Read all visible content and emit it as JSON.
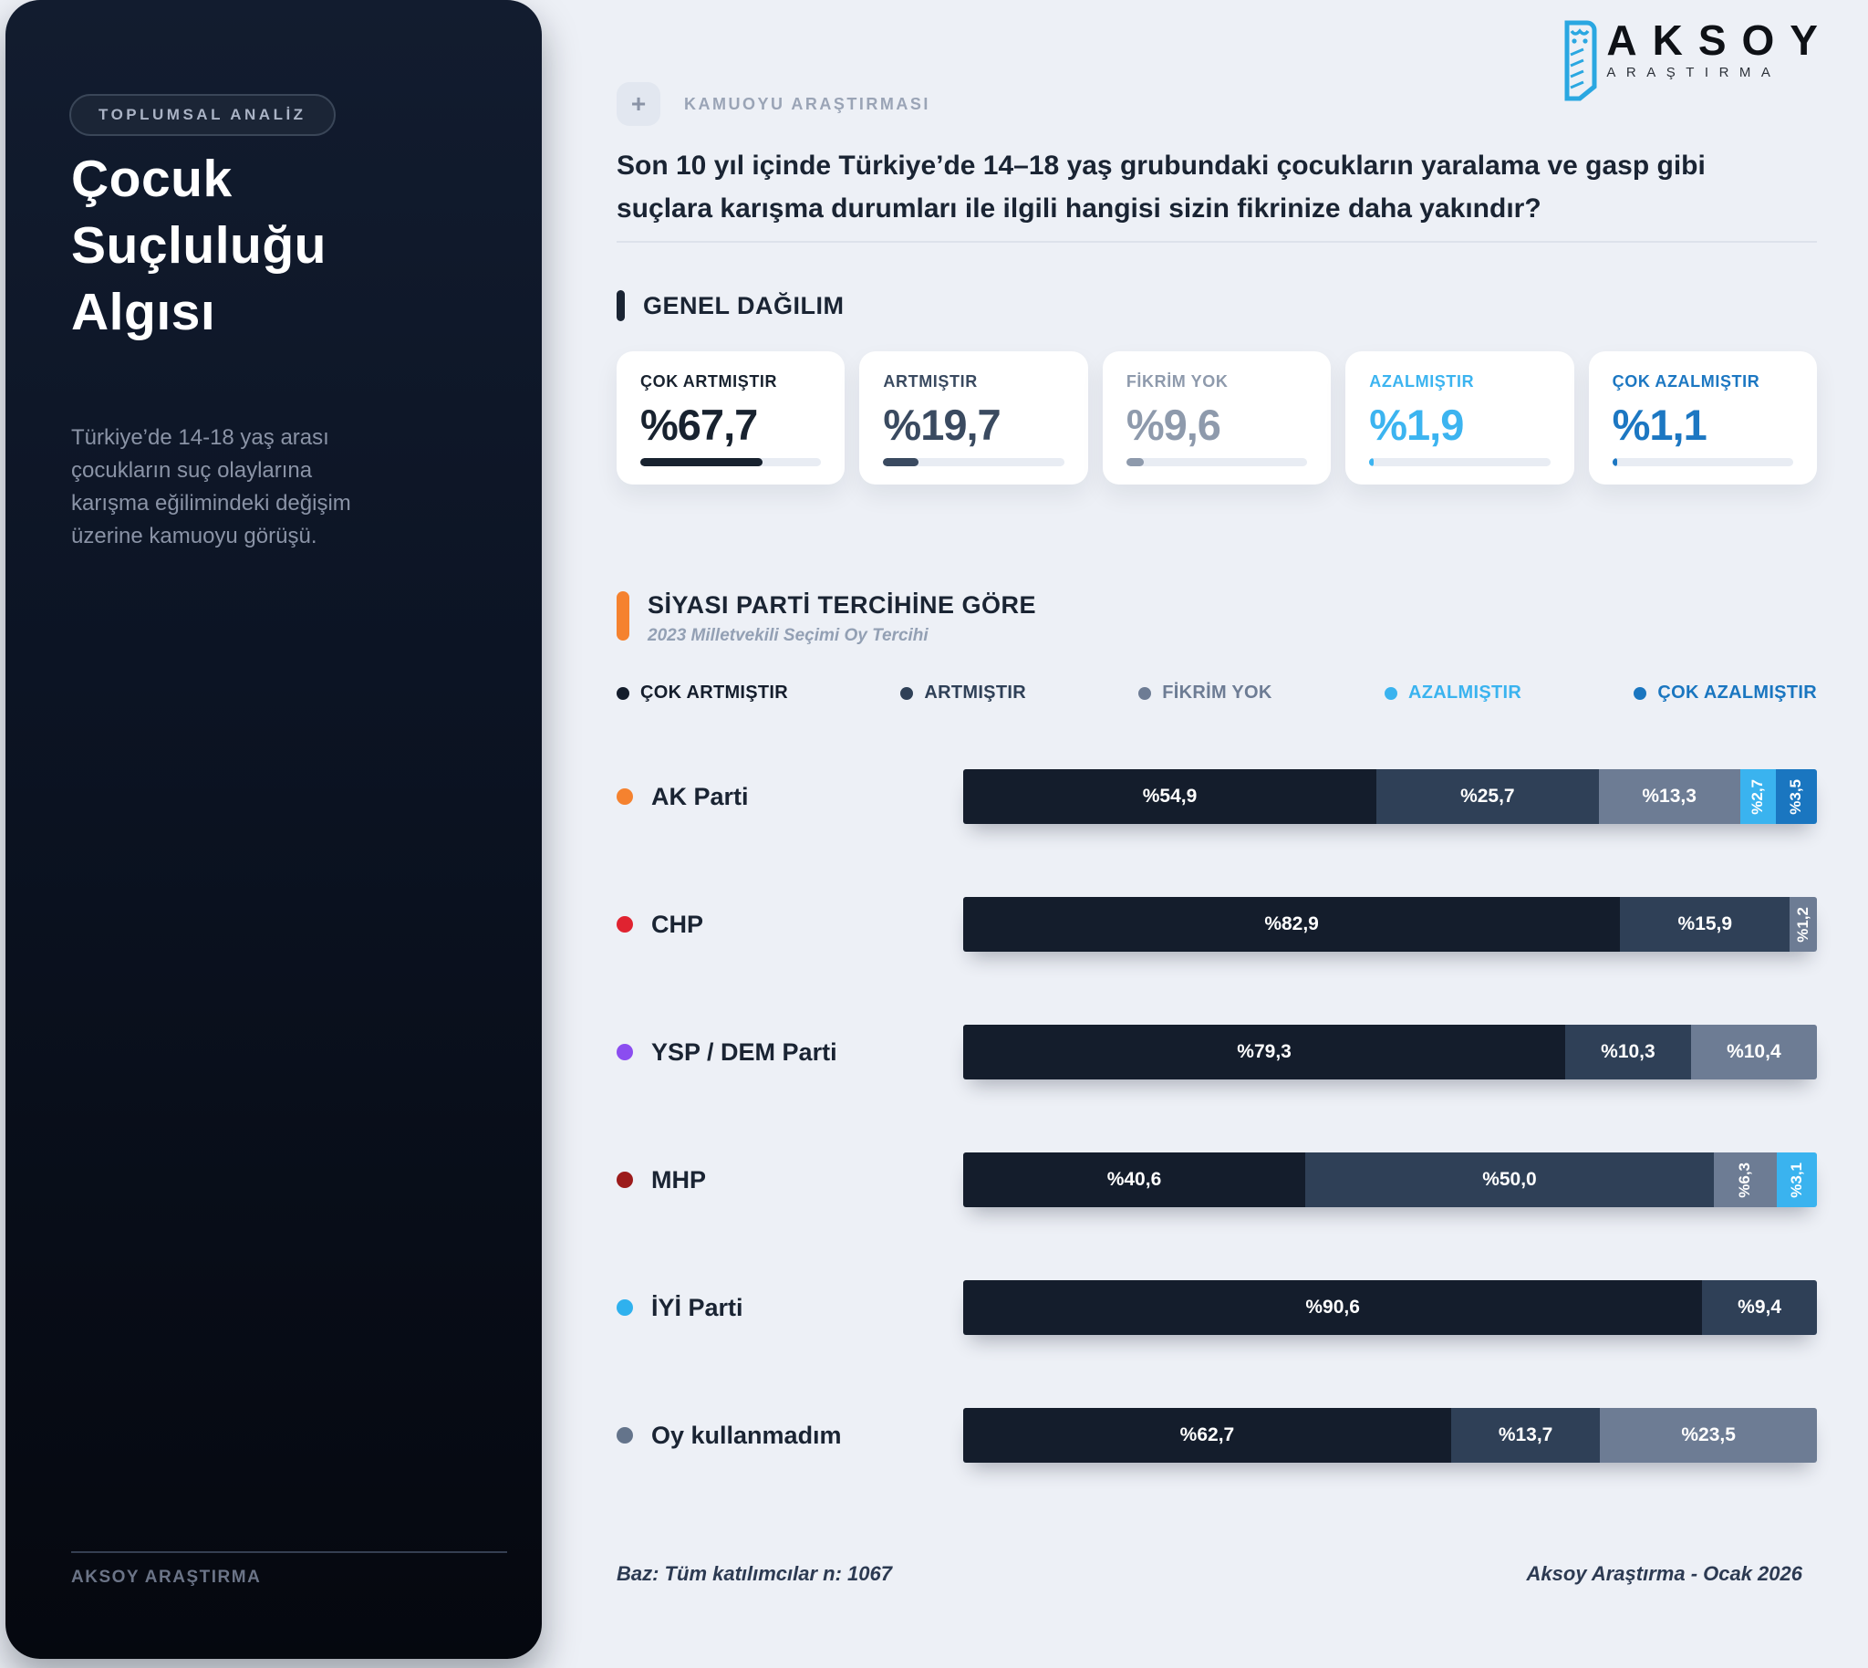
{
  "brand": {
    "name": "AKSOY",
    "subname": "ARAŞTIRMA"
  },
  "sidebar": {
    "badge": "TOPLUMSAL ANALİZ",
    "title_lines": [
      "Çocuk",
      "Suçluluğu",
      "Algısı"
    ],
    "description": "Türkiye’de 14-18 yaş arası çocukların suç olaylarına karışma eğilimindeki değişim üzerine kamuoyu görüşü.",
    "footer_brand": "AKSOY ARAŞTIRMA"
  },
  "header": {
    "plus_icon": "+",
    "eyebrow": "KAMUOYU ARAŞTIRMASI",
    "question": "Son 10 yıl içinde Türkiye’de 14–18 yaş grubundaki çocukların yaralama ve gasp gibi suçlara karışma durumları ile ilgili hangisi sizin fikrinize daha yakındır?"
  },
  "general_section": {
    "title": "GENEL DAĞILIM"
  },
  "party_section": {
    "title": "SİYASI PARTİ TERCİHİNE GÖRE",
    "subtitle": "2023 Milletvekili Seçimi Oy Tercihi",
    "accent_color": "#f5822f"
  },
  "footer": {
    "left": "Baz: Tüm katılımcılar n: 1067",
    "right": "Aksoy Araştırma - Ocak 2026"
  },
  "chart_data": [
    {
      "type": "bar",
      "variant": "stat-cards-with-progress",
      "title": "GENEL DAĞILIM",
      "categories": [
        "ÇOK ARTMIŞTIR",
        "ARTMIŞTIR",
        "FİKRİM YOK",
        "AZALMIŞTIR",
        "ÇOK AZALMIŞTIR"
      ],
      "values": [
        67.7,
        19.7,
        9.6,
        1.9,
        1.1
      ],
      "value_labels": [
        "%67,7",
        "%19,7",
        "%9,6",
        "%1,9",
        "%1,1"
      ],
      "colors": [
        "#18222f",
        "#3a4a60",
        "#8e9aac",
        "#3cb4f0",
        "#1c77c2"
      ],
      "ylim": [
        0,
        100
      ]
    },
    {
      "type": "bar",
      "variant": "stacked-horizontal",
      "title": "SİYASI PARTİ TERCİHİNE GÖRE",
      "subtitle": "2023 Milletvekili Seçimi Oy Tercihi",
      "series_labels": [
        "ÇOK ARTMIŞTIR",
        "ARTMIŞTIR",
        "FİKRİM YOK",
        "AZALMIŞTIR",
        "ÇOK AZALMIŞTIR"
      ],
      "series_colors": [
        "#141d2c",
        "#2f4057",
        "#6d7c94",
        "#3ab3ef",
        "#1a76c0"
      ],
      "categories": [
        "AK Parti",
        "CHP",
        "YSP / DEM Parti",
        "MHP",
        "İYİ Parti",
        "Oy kullanmadım"
      ],
      "category_dot_colors": [
        "#f5822f",
        "#e02330",
        "#8b4df0",
        "#9c1b1b",
        "#2fb1ee",
        "#64748b"
      ],
      "xlim": [
        0,
        100
      ],
      "rows": [
        {
          "party": "AK Parti",
          "segments": [
            {
              "series": 0,
              "value": 54.9,
              "label": "%54,9"
            },
            {
              "series": 1,
              "value": 25.7,
              "label": "%25,7"
            },
            {
              "series": 2,
              "value": 13.3,
              "label": "%13,3"
            },
            {
              "series": 3,
              "value": 2.7,
              "label": "%2,7"
            },
            {
              "series": 4,
              "value": 3.5,
              "label": "%3,5"
            }
          ]
        },
        {
          "party": "CHP",
          "segments": [
            {
              "series": 0,
              "value": 82.9,
              "label": "%82,9"
            },
            {
              "series": 1,
              "value": 15.9,
              "label": "%15,9"
            },
            {
              "series": 2,
              "value": 1.2,
              "label": "%1,2"
            }
          ]
        },
        {
          "party": "YSP / DEM Parti",
          "segments": [
            {
              "series": 0,
              "value": 79.3,
              "label": "%79,3"
            },
            {
              "series": 1,
              "value": 10.3,
              "label": "%10,3"
            },
            {
              "series": 2,
              "value": 10.4,
              "label": "%10,4"
            }
          ]
        },
        {
          "party": "MHP",
          "segments": [
            {
              "series": 0,
              "value": 40.6,
              "label": "%40,6"
            },
            {
              "series": 1,
              "value": 50.0,
              "label": "%50,0"
            },
            {
              "series": 2,
              "value": 6.3,
              "label": "%6,3"
            },
            {
              "series": 3,
              "value": 3.1,
              "label": "%3,1"
            }
          ]
        },
        {
          "party": "İYİ Parti",
          "segments": [
            {
              "series": 0,
              "value": 90.6,
              "label": "%90,6"
            },
            {
              "series": 1,
              "value": 9.4,
              "label": "%9,4"
            }
          ]
        },
        {
          "party": "Oy kullanmadım",
          "segments": [
            {
              "series": 0,
              "value": 62.7,
              "label": "%62,7"
            },
            {
              "series": 1,
              "value": 13.7,
              "label": "%13,7"
            },
            {
              "series": 2,
              "value": 23.5,
              "label": "%23,5"
            }
          ]
        }
      ]
    }
  ]
}
